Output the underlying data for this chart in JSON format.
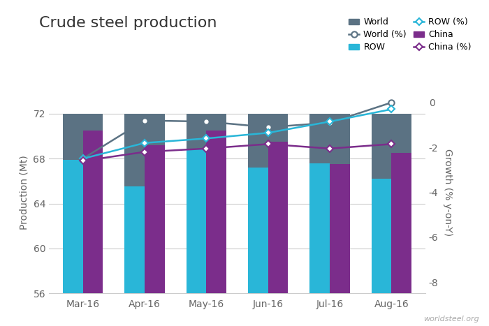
{
  "title": "Crude steel production",
  "categories": [
    "Mar-16",
    "Apr-16",
    "May-16",
    "Jun-16",
    "Jul-16",
    "Aug-16"
  ],
  "world_bars": [
    72.0,
    72.0,
    72.0,
    72.0,
    72.0,
    72.0
  ],
  "row_bars": [
    67.9,
    65.5,
    68.9,
    67.2,
    67.6,
    66.2
  ],
  "china_bars": [
    70.5,
    69.2,
    70.5,
    69.5,
    67.5,
    68.5
  ],
  "world_pct": [
    -2.5,
    -0.8,
    -0.85,
    -1.1,
    -0.9,
    0.0
  ],
  "row_pct": [
    -2.5,
    -1.8,
    -1.6,
    -1.35,
    -0.85,
    -0.3
  ],
  "china_pct": [
    -2.6,
    -2.2,
    -2.05,
    -1.85,
    -2.05,
    -1.85
  ],
  "world_bar_color": "#5b7283",
  "row_bar_color": "#29b6d8",
  "china_bar_color": "#7b2d8b",
  "world_line_color": "#5b7283",
  "row_line_color": "#29b6d8",
  "china_line_color": "#7b2d8b",
  "ylim_left": [
    56,
    74
  ],
  "ylim_right": [
    -8.5,
    0.5
  ],
  "yticks_left": [
    56,
    60,
    64,
    68,
    72
  ],
  "yticks_right": [
    -8,
    -6,
    -4,
    -2,
    0
  ],
  "ylabel_left": "Production (Mt)",
  "ylabel_right": "Growth (% y-on-Y)",
  "footer": "worldsteel.org",
  "bg_color": "#ffffff",
  "grid_color": "#cccccc"
}
